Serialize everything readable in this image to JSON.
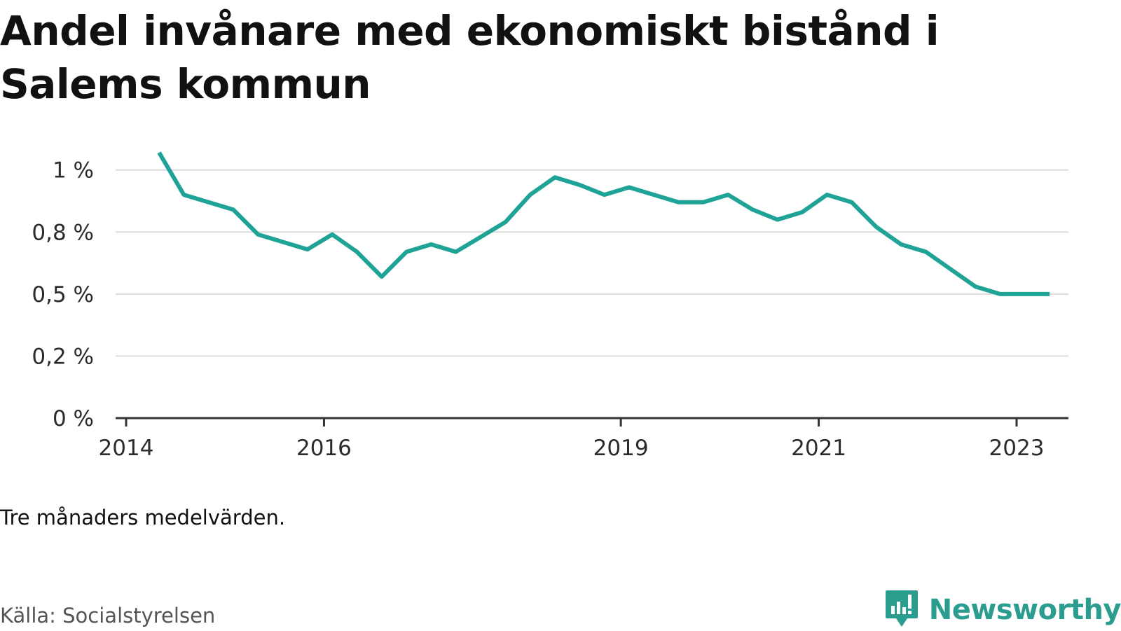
{
  "title": "Andel invånare med ekonomiskt bistånd i Salems kommun",
  "note": "Tre månaders medelvärden.",
  "source": "Källa: Socialstyrelsen",
  "brand": {
    "name": "Newsworthy",
    "icon": "newsworthy-logo-icon",
    "color": "#2a9d8f"
  },
  "colors": {
    "line": "#1fa397",
    "grid": "#dcdcdc",
    "axis": "#333333"
  },
  "chart_data": {
    "type": "line",
    "title": "Andel invånare med ekonomiskt bistånd i Salems kommun",
    "xlabel": "",
    "ylabel": "",
    "xlim": [
      "2014-01",
      "2023-09"
    ],
    "ylim": [
      0,
      1.05
    ],
    "grid": true,
    "x_ticks": [
      {
        "label": "2014",
        "value": "2014-01"
      },
      {
        "label": "2016",
        "value": "2016-01"
      },
      {
        "label": "2019",
        "value": "2019-01"
      },
      {
        "label": "2021",
        "value": "2021-01"
      },
      {
        "label": "2023",
        "value": "2023-01"
      }
    ],
    "y_ticks": [
      {
        "label": "0 %",
        "value": 0
      },
      {
        "label": "0,2 %",
        "value": 0.25
      },
      {
        "label": "0,5 %",
        "value": 0.5
      },
      {
        "label": "0,8 %",
        "value": 0.75
      },
      {
        "label": "1 %",
        "value": 1.0
      }
    ],
    "series": [
      {
        "x": [
          "2014-05",
          "2014-08",
          "2014-11",
          "2015-02",
          "2015-05",
          "2015-08",
          "2015-11",
          "2016-02",
          "2016-05",
          "2016-08",
          "2016-11",
          "2017-02",
          "2017-05",
          "2017-08",
          "2017-11",
          "2018-02",
          "2018-05",
          "2018-08",
          "2018-11",
          "2019-02",
          "2019-05",
          "2019-08",
          "2019-11",
          "2020-02",
          "2020-05",
          "2020-08",
          "2020-11",
          "2021-02",
          "2021-05",
          "2021-08",
          "2021-11",
          "2022-02",
          "2022-05",
          "2022-08",
          "2022-11",
          "2023-02",
          "2023-05"
        ],
        "values": [
          1.07,
          0.9,
          0.87,
          0.84,
          0.74,
          0.71,
          0.68,
          0.74,
          0.67,
          0.57,
          0.67,
          0.7,
          0.67,
          0.73,
          0.79,
          0.9,
          0.97,
          0.94,
          0.9,
          0.93,
          0.9,
          0.87,
          0.87,
          0.9,
          0.84,
          0.8,
          0.83,
          0.9,
          0.87,
          0.77,
          0.7,
          0.67,
          0.6,
          0.53,
          0.5,
          0.5,
          0.5
        ]
      }
    ]
  }
}
